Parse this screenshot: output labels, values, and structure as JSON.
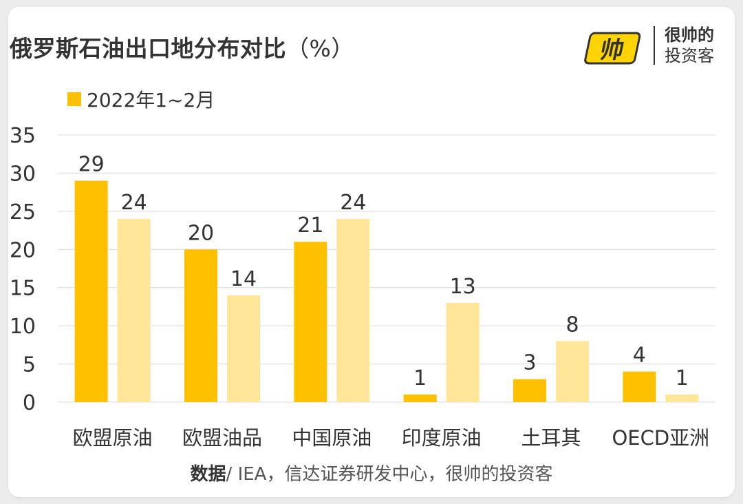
{
  "title": "俄罗斯石油出口地分布对比",
  "title_unit": "（%）",
  "logo": {
    "line1": "很帅的",
    "line2": "投资客",
    "mark": "帅"
  },
  "source": {
    "bold": "数据",
    "text": "/ IEA，信达证券研发中心，很帅的投资客"
  },
  "colors": {
    "series1": "#FFC000",
    "series2": "#FFE699",
    "grid": "#D9D9D9",
    "text": "#333333"
  },
  "chart_data": {
    "type": "bar",
    "categories": [
      "欧盟原油",
      "欧盟油品",
      "中国原油",
      "印度原油",
      "土耳其",
      "OECD亚洲"
    ],
    "series": [
      {
        "name": "2022年1~2月",
        "values": [
          29,
          20,
          21,
          1,
          3,
          4
        ]
      },
      {
        "values": [
          24,
          14,
          24,
          13,
          8,
          1
        ]
      }
    ],
    "ylim": [
      0,
      35
    ],
    "yticks": [
      "0",
      "5",
      "10",
      "15",
      "20",
      "25",
      "30",
      "35"
    ],
    "grid": true,
    "legend": "top-left",
    "data_labels": true
  }
}
